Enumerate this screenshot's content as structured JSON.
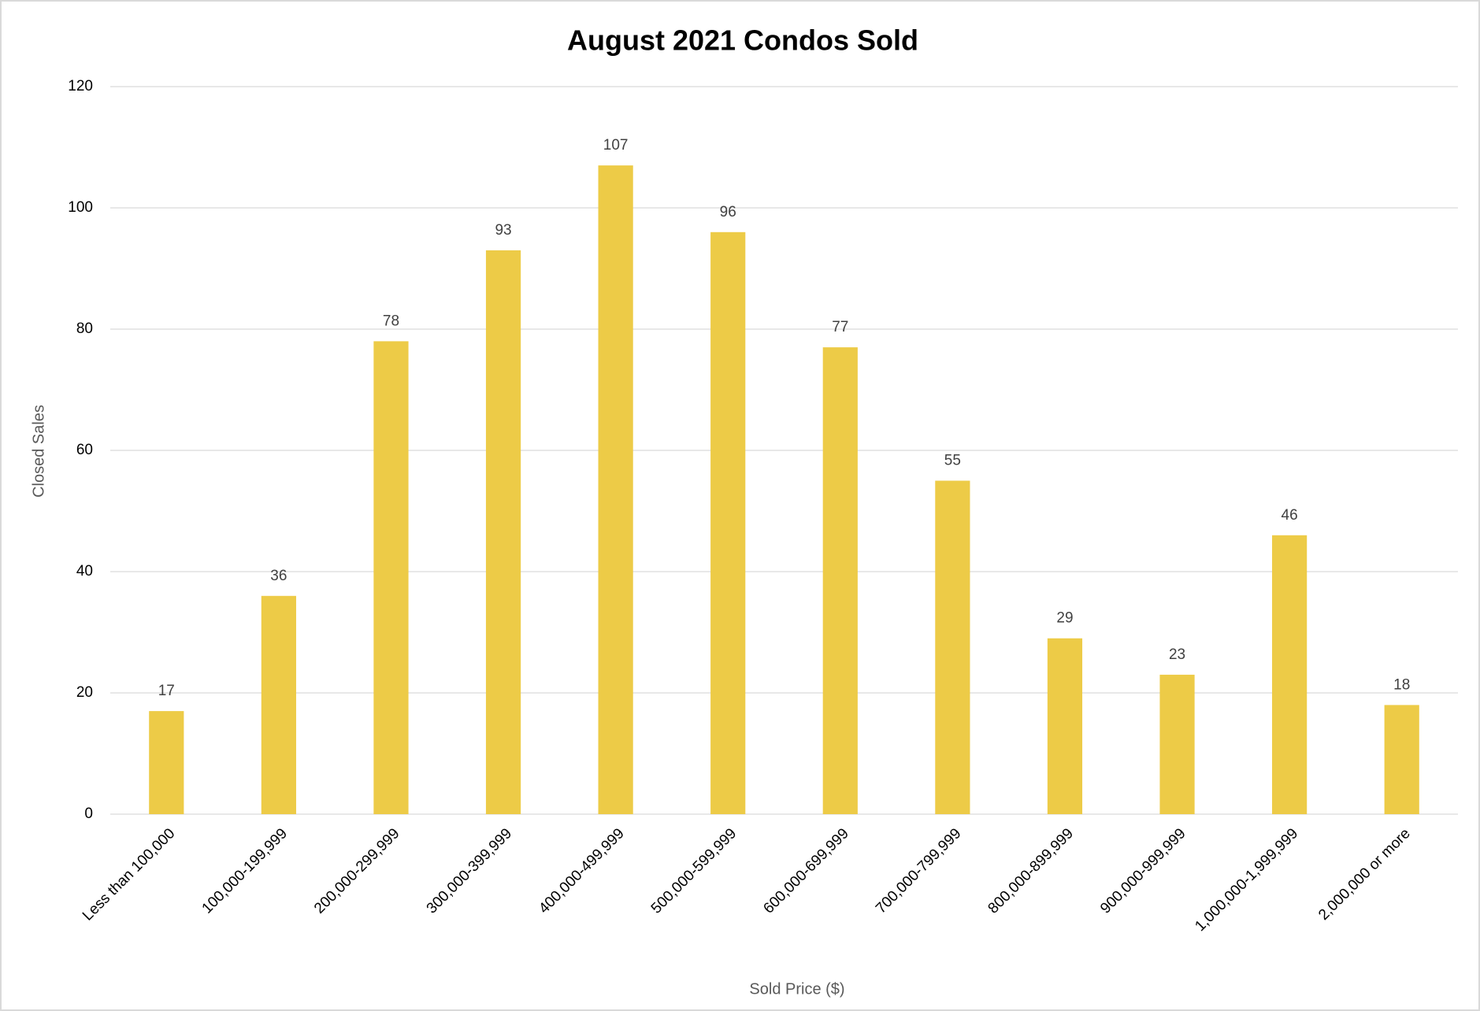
{
  "chart_data": {
    "type": "bar",
    "title": "August 2021 Condos Sold",
    "x_label": "Sold Price ($)",
    "y_label": "Closed Sales",
    "categories": [
      "Less than 100,000",
      "100,000-199,999",
      "200,000-299,999",
      "300,000-399,999",
      "400,000-499,999",
      "500,000-599,999",
      "600,000-699,999",
      "700,000-799,999",
      "800,000-899,999",
      "900,000-999,999",
      "1,000,000-1,999,999",
      "2,000,000 or more"
    ],
    "values": [
      17,
      36,
      78,
      93,
      107,
      96,
      77,
      55,
      29,
      23,
      46,
      18
    ],
    "color": "#edcb47",
    "ylim": [
      0,
      120
    ],
    "yticks": [
      0,
      20,
      40,
      60,
      80,
      100,
      120
    ],
    "grid": true
  }
}
